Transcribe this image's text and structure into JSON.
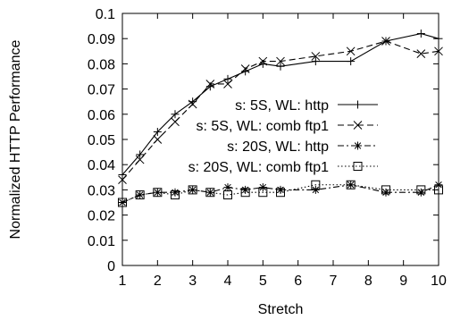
{
  "chart_data": {
    "type": "line",
    "title": "",
    "xlabel": "Stretch",
    "ylabel": "Normalized HTTP Performance",
    "xlim": [
      1,
      10
    ],
    "ylim": [
      0,
      0.1
    ],
    "xticks": [
      "1",
      "2",
      "3",
      "4",
      "5",
      "6",
      "7",
      "8",
      "9",
      "10"
    ],
    "yticks": [
      "0",
      "0.01",
      "0.02",
      "0.03",
      "0.04",
      "0.05",
      "0.06",
      "0.07",
      "0.08",
      "0.09",
      "0.1"
    ],
    "grid": false,
    "legend_position": "right",
    "series": [
      {
        "name": "s: 5S, WL: http",
        "marker": "plus",
        "dash": "solid",
        "x": [
          1,
          1.5,
          2,
          2.5,
          3,
          3.5,
          4,
          4.5,
          5,
          5.5,
          6.5,
          7.5,
          8.5,
          9.5,
          10
        ],
        "y": [
          0.036,
          0.044,
          0.053,
          0.06,
          0.065,
          0.071,
          0.074,
          0.077,
          0.08,
          0.079,
          0.081,
          0.081,
          0.089,
          0.092,
          0.09
        ]
      },
      {
        "name": "s: 5S, WL: comb ftp1",
        "marker": "x",
        "dash": "dashed",
        "x": [
          1,
          1.5,
          2,
          2.5,
          3,
          3.5,
          4,
          4.5,
          5,
          5.5,
          6.5,
          7.5,
          8.5,
          9.5,
          10
        ],
        "y": [
          0.034,
          0.042,
          0.05,
          0.057,
          0.064,
          0.072,
          0.072,
          0.078,
          0.081,
          0.081,
          0.083,
          0.085,
          0.089,
          0.084,
          0.085
        ]
      },
      {
        "name": "s: 20S, WL: http",
        "marker": "star",
        "dash": "dotdash",
        "x": [
          1,
          1.5,
          2,
          2.5,
          3,
          3.5,
          4,
          4.5,
          5,
          5.5,
          6.5,
          7.5,
          8.5,
          9.5,
          10
        ],
        "y": [
          0.025,
          0.028,
          0.029,
          0.029,
          0.03,
          0.029,
          0.031,
          0.03,
          0.031,
          0.03,
          0.03,
          0.032,
          0.029,
          0.029,
          0.032
        ]
      },
      {
        "name": "s: 20S, WL: comb ftp1",
        "marker": "square",
        "dash": "dotted",
        "x": [
          1,
          1.5,
          2,
          2.5,
          3,
          3.5,
          4,
          4.5,
          5,
          5.5,
          6.5,
          7.5,
          8.5,
          9.5,
          10
        ],
        "y": [
          0.025,
          0.028,
          0.029,
          0.028,
          0.03,
          0.029,
          0.028,
          0.029,
          0.029,
          0.029,
          0.032,
          0.032,
          0.03,
          0.03,
          0.03
        ]
      }
    ]
  }
}
